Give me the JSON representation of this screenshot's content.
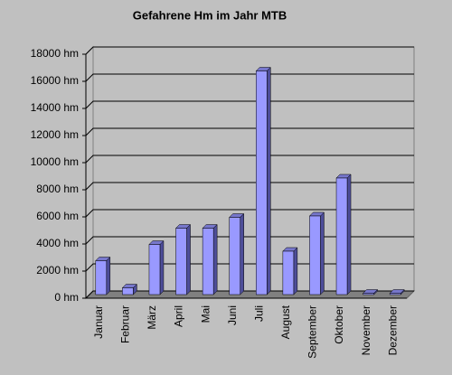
{
  "chart_data": {
    "type": "bar",
    "title": "Gefahrene Hm im Jahr MTB",
    "categories": [
      "Januar",
      "Februar",
      "März",
      "April",
      "Mai",
      "Juni",
      "Juli",
      "August",
      "September",
      "Oktober",
      "November",
      "Dezember"
    ],
    "values": [
      2500,
      500,
      3700,
      4900,
      4900,
      5700,
      16500,
      3200,
      5800,
      8600,
      100,
      100
    ],
    "color": "#9999ff",
    "ylim": [
      0,
      18000
    ],
    "yticks": [
      {
        "value": 0,
        "label": "0 hm"
      },
      {
        "value": 2000,
        "label": "2000 hm"
      },
      {
        "value": 4000,
        "label": "4000 hm"
      },
      {
        "value": 6000,
        "label": "6000 hm"
      },
      {
        "value": 8000,
        "label": "8000 hm"
      },
      {
        "value": 10000,
        "label": "10000 hm"
      },
      {
        "value": 12000,
        "label": "12000 hm"
      },
      {
        "value": 14000,
        "label": "14000 hm"
      },
      {
        "value": 16000,
        "label": "16000 hm"
      },
      {
        "value": 18000,
        "label": "18000 hm"
      }
    ],
    "grid": true
  }
}
